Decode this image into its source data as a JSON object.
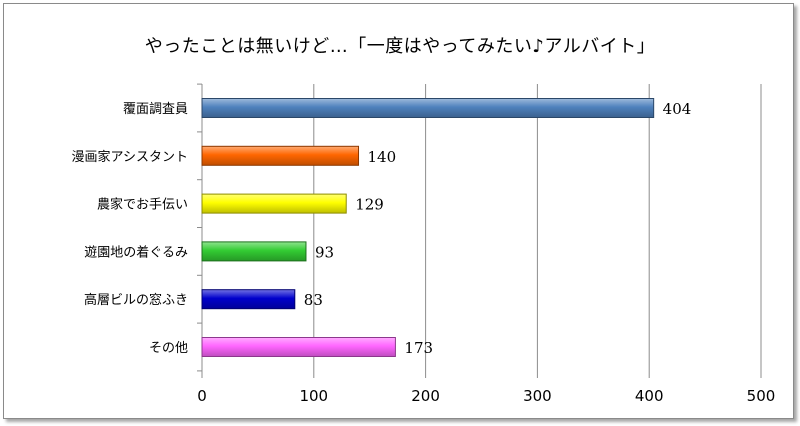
{
  "chart_data": {
    "type": "bar",
    "orientation": "horizontal",
    "title": "やったことは無いけど…「一度はやってみたい♪アルバイト」",
    "categories": [
      "覆面調査員",
      "漫画家アシスタント",
      "農家でお手伝い",
      "遊園地の着ぐるみ",
      "高層ビルの窓ふき",
      "その他"
    ],
    "values": [
      404,
      140,
      129,
      93,
      83,
      173
    ],
    "colors": [
      "#4f81bd",
      "#ff6600",
      "#ffff00",
      "#33cc33",
      "#0000cc",
      "#ff66ff"
    ],
    "xlim": [
      0,
      500
    ],
    "xticks": [
      0,
      100,
      200,
      300,
      400,
      500
    ],
    "grid": true,
    "legend": "none",
    "xlabel": "",
    "ylabel": ""
  }
}
